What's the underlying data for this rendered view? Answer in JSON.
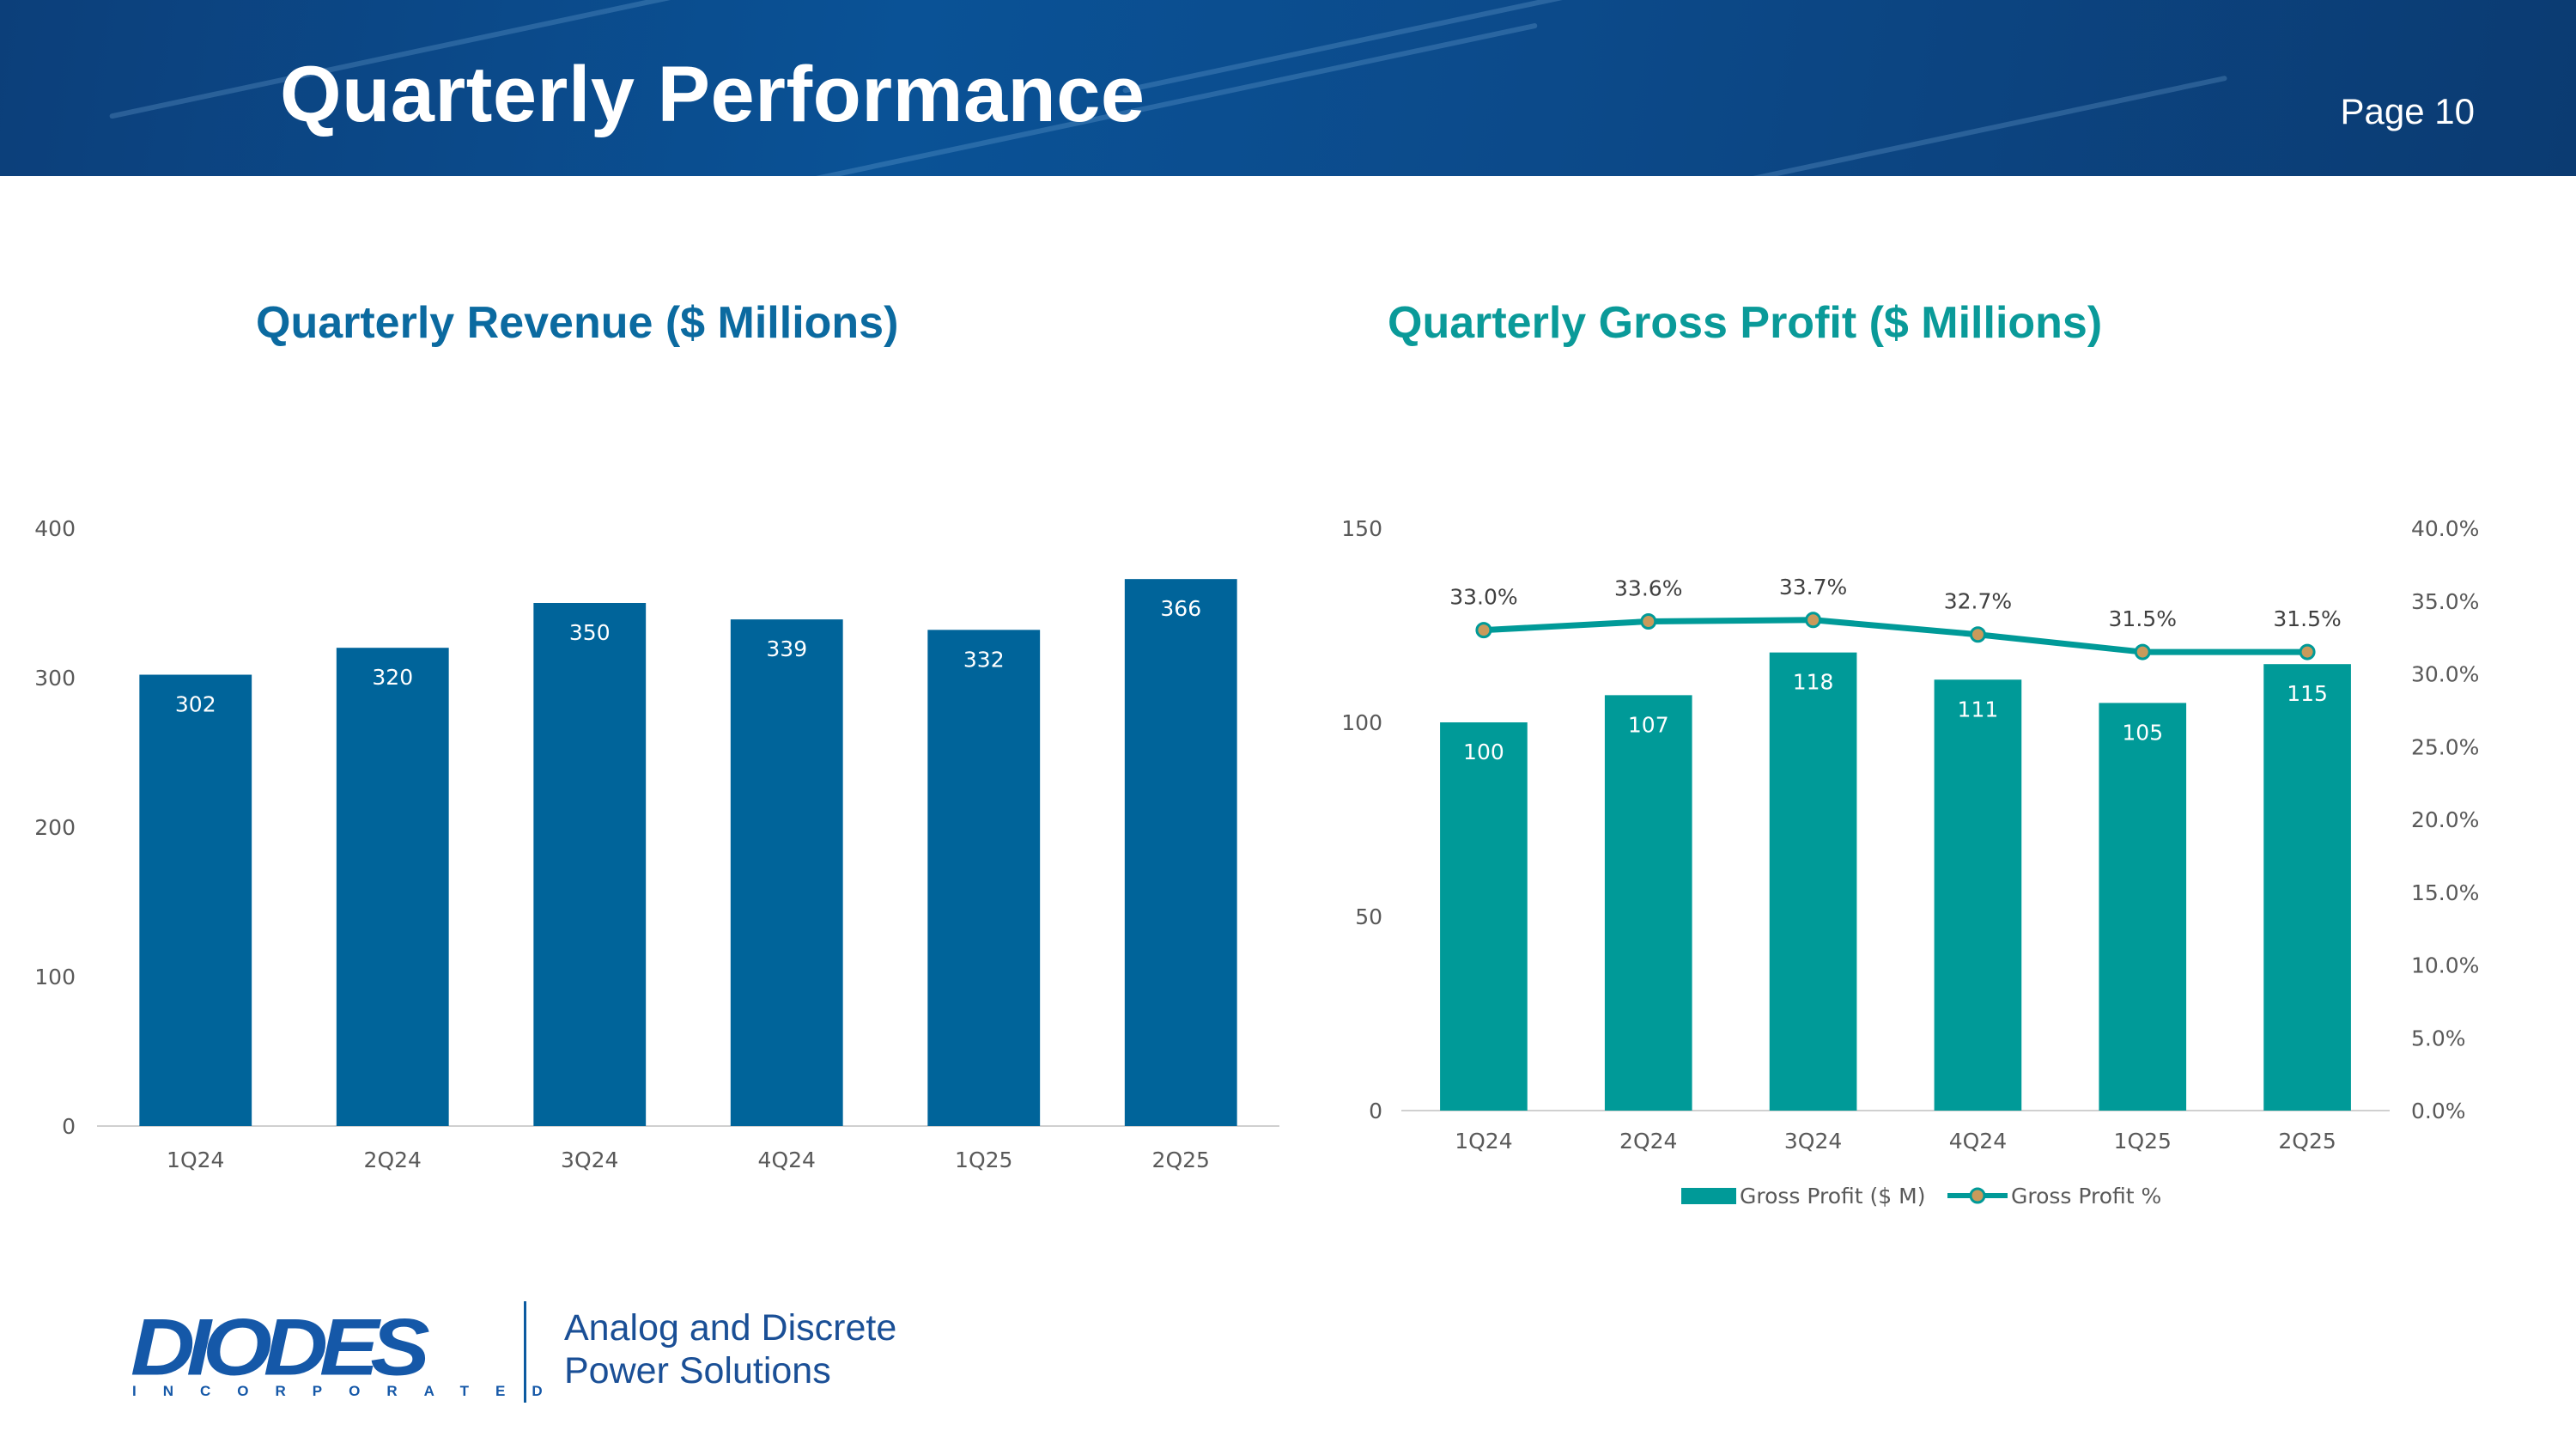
{
  "header": {
    "title": "Quarterly Performance",
    "page_label": "Page 10"
  },
  "colors": {
    "revenue_bar": "#00649a",
    "gross_profit_bar": "#009a98",
    "line": "#009a98",
    "marker": "#c99a5b",
    "header_bg": "#0a5296"
  },
  "footer": {
    "logo_text": "DIODES",
    "logo_subtext": "INCORPORATED",
    "tagline_line1": "Analog and Discrete",
    "tagline_line2": "Power Solutions"
  },
  "chart_data": [
    {
      "type": "bar",
      "title": "Quarterly Revenue ($ Millions)",
      "categories": [
        "1Q24",
        "2Q24",
        "3Q24",
        "4Q24",
        "1Q25",
        "2Q25"
      ],
      "values": [
        302,
        320,
        350,
        339,
        332,
        366
      ],
      "data_labels": [
        "302",
        "320",
        "350",
        "339",
        "332",
        "366"
      ],
      "ylim": [
        0,
        400
      ],
      "yticks": [
        "0",
        "100",
        "200",
        "300",
        "400"
      ],
      "xlabel": "",
      "ylabel": "",
      "grid": false,
      "legend": "none"
    },
    {
      "type": "bar",
      "title": "Quarterly Gross Profit ($ Millions)",
      "categories": [
        "1Q24",
        "2Q24",
        "3Q24",
        "4Q24",
        "1Q25",
        "2Q25"
      ],
      "series": [
        {
          "name": "Gross Profit ($ M)",
          "type": "bar",
          "axis": "left",
          "values": [
            100,
            107,
            118,
            111,
            105,
            115
          ],
          "data_labels": [
            "100",
            "107",
            "118",
            "111",
            "105",
            "115"
          ]
        },
        {
          "name": "Gross Profit %",
          "type": "line",
          "axis": "right",
          "values": [
            33.0,
            33.6,
            33.7,
            32.7,
            31.5,
            31.5
          ],
          "data_labels": [
            "33.0%",
            "33.6%",
            "33.7%",
            "32.7%",
            "31.5%",
            "31.5%"
          ]
        }
      ],
      "ylim": [
        0,
        150
      ],
      "yticks": [
        "0",
        "50",
        "100",
        "150"
      ],
      "y2lim": [
        0,
        40
      ],
      "y2ticks": [
        "0.0%",
        "5.0%",
        "10.0%",
        "15.0%",
        "20.0%",
        "25.0%",
        "30.0%",
        "35.0%",
        "40.0%"
      ],
      "grid": false,
      "legend": "bottom-center"
    }
  ]
}
